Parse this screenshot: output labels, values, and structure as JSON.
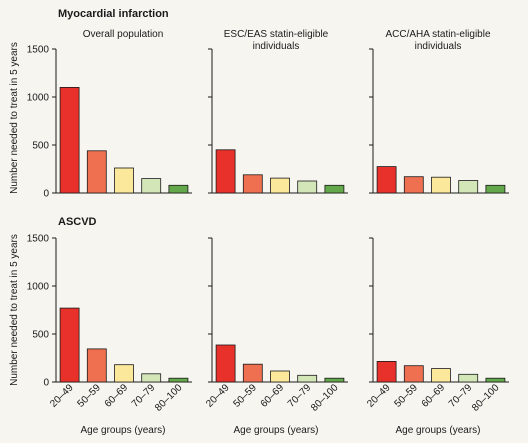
{
  "figure": {
    "row_titles": [
      "Myocardial infarction",
      "ASCVD"
    ],
    "ylabel": "Number needed to treat in 5 years",
    "xlabel": "Age groups (years)",
    "column_titles": [
      [
        "Overall population"
      ],
      [
        "ESC/EAS statin-eligible",
        "individuals"
      ],
      [
        "ACC/AHA statin-eligible",
        "individuals"
      ]
    ]
  },
  "colors": {
    "bars": [
      "#e8312b",
      "#ee7050",
      "#fbe89a",
      "#d2e6b8",
      "#63a84a"
    ],
    "bar_stroke": "#1a1a1a",
    "axis": "#1a1a1a",
    "background": "#f6f5f0"
  },
  "chart_data": [
    {
      "type": "bar",
      "row": "Myocardial infarction",
      "panel": "Overall population",
      "categories": [
        "20–49",
        "50–59",
        "60–69",
        "70–79",
        "80–100"
      ],
      "values": [
        1100,
        440,
        260,
        150,
        80
      ],
      "ylim": [
        0,
        1500
      ],
      "yticks": [
        0,
        500,
        1000,
        1500
      ],
      "ylabel": "Number needed to treat in 5 years",
      "xlabel": ""
    },
    {
      "type": "bar",
      "row": "Myocardial infarction",
      "panel": "ESC/EAS statin-eligible individuals",
      "categories": [
        "20–49",
        "50–59",
        "60–69",
        "70–79",
        "80–100"
      ],
      "values": [
        450,
        190,
        155,
        125,
        80
      ],
      "ylim": [
        0,
        1500
      ],
      "yticks": [
        0,
        500,
        1000,
        1500
      ],
      "ylabel": "",
      "xlabel": ""
    },
    {
      "type": "bar",
      "row": "Myocardial infarction",
      "panel": "ACC/AHA statin-eligible individuals",
      "categories": [
        "20–49",
        "50–59",
        "60–69",
        "70–79",
        "80–100"
      ],
      "values": [
        275,
        170,
        165,
        130,
        80
      ],
      "ylim": [
        0,
        1500
      ],
      "yticks": [
        0,
        500,
        1000,
        1500
      ],
      "ylabel": "",
      "xlabel": ""
    },
    {
      "type": "bar",
      "row": "ASCVD",
      "panel": "Overall population",
      "categories": [
        "20–49",
        "50–59",
        "60–69",
        "70–79",
        "80–100"
      ],
      "values": [
        770,
        345,
        180,
        85,
        40
      ],
      "ylim": [
        0,
        1500
      ],
      "yticks": [
        0,
        500,
        1000,
        1500
      ],
      "ylabel": "Number needed to treat in 5 years",
      "xlabel": "Age groups (years)"
    },
    {
      "type": "bar",
      "row": "ASCVD",
      "panel": "ESC/EAS statin-eligible individuals",
      "categories": [
        "20–49",
        "50–59",
        "60–69",
        "70–79",
        "80–100"
      ],
      "values": [
        385,
        185,
        115,
        70,
        40
      ],
      "ylim": [
        0,
        1500
      ],
      "yticks": [
        0,
        500,
        1000,
        1500
      ],
      "ylabel": "",
      "xlabel": "Age groups (years)"
    },
    {
      "type": "bar",
      "row": "ASCVD",
      "panel": "ACC/AHA statin-eligible individuals",
      "categories": [
        "20–49",
        "50–59",
        "60–69",
        "70–79",
        "80–100"
      ],
      "values": [
        215,
        170,
        140,
        80,
        40
      ],
      "ylim": [
        0,
        1500
      ],
      "yticks": [
        0,
        500,
        1000,
        1500
      ],
      "ylabel": "",
      "xlabel": "Age groups (years)"
    }
  ]
}
